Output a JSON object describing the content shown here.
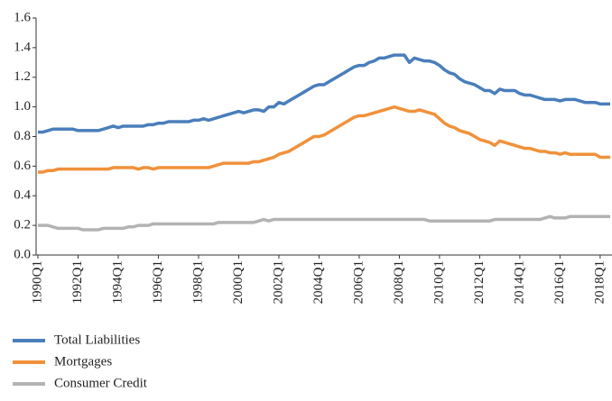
{
  "chart_data": {
    "type": "line",
    "categories": [
      "1990Q1",
      null,
      null,
      null,
      null,
      null,
      null,
      null,
      "1992Q1",
      null,
      null,
      null,
      null,
      null,
      null,
      null,
      "1994Q1",
      null,
      null,
      null,
      null,
      null,
      null,
      null,
      "1996Q1",
      null,
      null,
      null,
      null,
      null,
      null,
      null,
      "1998Q1",
      null,
      null,
      null,
      null,
      null,
      null,
      null,
      "2000Q1",
      null,
      null,
      null,
      null,
      null,
      null,
      null,
      "2002Q1",
      null,
      null,
      null,
      null,
      null,
      null,
      null,
      "2004Q1",
      null,
      null,
      null,
      null,
      null,
      null,
      null,
      "2006Q1",
      null,
      null,
      null,
      null,
      null,
      null,
      null,
      "2008Q1",
      null,
      null,
      null,
      null,
      null,
      null,
      null,
      "2010Q1",
      null,
      null,
      null,
      null,
      null,
      null,
      null,
      "2012Q1",
      null,
      null,
      null,
      null,
      null,
      null,
      null,
      "2014Q1",
      null,
      null,
      null,
      null,
      null,
      null,
      null,
      "2016Q1",
      null,
      null,
      null,
      null,
      null,
      null,
      null,
      "2018Q1",
      null,
      null
    ],
    "series": [
      {
        "name": "Total Liabilities",
        "color": "#4a7ebb",
        "values": [
          0.83,
          0.83,
          0.84,
          0.85,
          0.85,
          0.85,
          0.85,
          0.85,
          0.84,
          0.84,
          0.84,
          0.84,
          0.84,
          0.85,
          0.86,
          0.87,
          0.86,
          0.87,
          0.87,
          0.87,
          0.87,
          0.87,
          0.88,
          0.88,
          0.89,
          0.89,
          0.9,
          0.9,
          0.9,
          0.9,
          0.9,
          0.91,
          0.91,
          0.92,
          0.91,
          0.92,
          0.93,
          0.94,
          0.95,
          0.96,
          0.97,
          0.96,
          0.97,
          0.98,
          0.98,
          0.97,
          1.0,
          1.0,
          1.03,
          1.02,
          1.04,
          1.06,
          1.08,
          1.1,
          1.12,
          1.14,
          1.15,
          1.15,
          1.17,
          1.19,
          1.21,
          1.23,
          1.25,
          1.27,
          1.28,
          1.28,
          1.3,
          1.31,
          1.33,
          1.33,
          1.34,
          1.35,
          1.35,
          1.35,
          1.3,
          1.33,
          1.32,
          1.31,
          1.31,
          1.3,
          1.28,
          1.25,
          1.23,
          1.22,
          1.19,
          1.17,
          1.16,
          1.15,
          1.13,
          1.11,
          1.11,
          1.09,
          1.12,
          1.11,
          1.11,
          1.11,
          1.09,
          1.08,
          1.08,
          1.07,
          1.06,
          1.05,
          1.05,
          1.05,
          1.04,
          1.05,
          1.05,
          1.05,
          1.04,
          1.03,
          1.03,
          1.03,
          1.02,
          1.02,
          1.02
        ]
      },
      {
        "name": "Mortgages",
        "color": "#f0913a",
        "values": [
          0.56,
          0.56,
          0.57,
          0.57,
          0.58,
          0.58,
          0.58,
          0.58,
          0.58,
          0.58,
          0.58,
          0.58,
          0.58,
          0.58,
          0.58,
          0.59,
          0.59,
          0.59,
          0.59,
          0.59,
          0.58,
          0.59,
          0.59,
          0.58,
          0.59,
          0.59,
          0.59,
          0.59,
          0.59,
          0.59,
          0.59,
          0.59,
          0.59,
          0.59,
          0.59,
          0.6,
          0.61,
          0.62,
          0.62,
          0.62,
          0.62,
          0.62,
          0.62,
          0.63,
          0.63,
          0.64,
          0.65,
          0.66,
          0.68,
          0.69,
          0.7,
          0.72,
          0.74,
          0.76,
          0.78,
          0.8,
          0.8,
          0.81,
          0.83,
          0.85,
          0.87,
          0.89,
          0.91,
          0.93,
          0.94,
          0.94,
          0.95,
          0.96,
          0.97,
          0.98,
          0.99,
          1.0,
          0.99,
          0.98,
          0.97,
          0.97,
          0.98,
          0.97,
          0.96,
          0.95,
          0.92,
          0.89,
          0.87,
          0.86,
          0.84,
          0.83,
          0.82,
          0.8,
          0.78,
          0.77,
          0.76,
          0.74,
          0.77,
          0.76,
          0.75,
          0.74,
          0.73,
          0.72,
          0.72,
          0.71,
          0.7,
          0.7,
          0.69,
          0.69,
          0.68,
          0.69,
          0.68,
          0.68,
          0.68,
          0.68,
          0.68,
          0.68,
          0.66,
          0.66,
          0.66
        ]
      },
      {
        "name": "Consumer Credit",
        "color": "#b3b3b3",
        "values": [
          0.2,
          0.2,
          0.2,
          0.19,
          0.18,
          0.18,
          0.18,
          0.18,
          0.18,
          0.17,
          0.17,
          0.17,
          0.17,
          0.18,
          0.18,
          0.18,
          0.18,
          0.18,
          0.19,
          0.19,
          0.2,
          0.2,
          0.2,
          0.21,
          0.21,
          0.21,
          0.21,
          0.21,
          0.21,
          0.21,
          0.21,
          0.21,
          0.21,
          0.21,
          0.21,
          0.21,
          0.22,
          0.22,
          0.22,
          0.22,
          0.22,
          0.22,
          0.22,
          0.22,
          0.23,
          0.24,
          0.23,
          0.24,
          0.24,
          0.24,
          0.24,
          0.24,
          0.24,
          0.24,
          0.24,
          0.24,
          0.24,
          0.24,
          0.24,
          0.24,
          0.24,
          0.24,
          0.24,
          0.24,
          0.24,
          0.24,
          0.24,
          0.24,
          0.24,
          0.24,
          0.24,
          0.24,
          0.24,
          0.24,
          0.24,
          0.24,
          0.24,
          0.24,
          0.23,
          0.23,
          0.23,
          0.23,
          0.23,
          0.23,
          0.23,
          0.23,
          0.23,
          0.23,
          0.23,
          0.23,
          0.23,
          0.24,
          0.24,
          0.24,
          0.24,
          0.24,
          0.24,
          0.24,
          0.24,
          0.24,
          0.24,
          0.25,
          0.26,
          0.25,
          0.25,
          0.25,
          0.26,
          0.26,
          0.26,
          0.26,
          0.26,
          0.26,
          0.26,
          0.26,
          0.26
        ]
      }
    ],
    "ylim": [
      0,
      1.6
    ],
    "yticks": [
      {
        "value": 0,
        "label": "0.0"
      },
      0.2,
      0.4,
      0.6,
      0.8,
      {
        "value": 1,
        "label": "1.0"
      },
      1.2,
      1.4,
      1.6
    ]
  }
}
